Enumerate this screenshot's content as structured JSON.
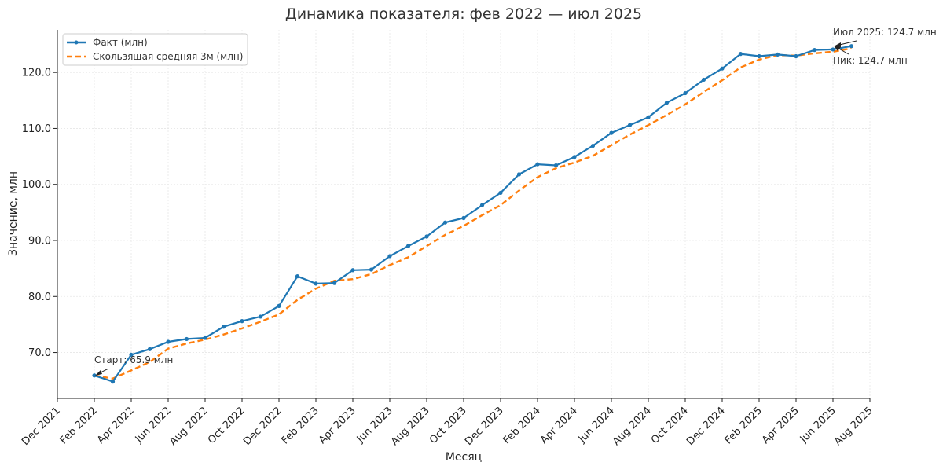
{
  "chart_data": {
    "type": "line",
    "title": "Динамика показателя: фев 2022 — июл 2025",
    "xlabel": "Месяц",
    "ylabel": "Значение, млн",
    "x_ticks": [
      "Dec 2021",
      "Feb 2022",
      "Apr 2022",
      "Jun 2022",
      "Aug 2022",
      "Oct 2022",
      "Dec 2022",
      "Feb 2023",
      "Apr 2023",
      "Jun 2023",
      "Aug 2023",
      "Oct 2023",
      "Dec 2023",
      "Feb 2024",
      "Apr 2024",
      "Jun 2024",
      "Aug 2024",
      "Oct 2024",
      "Dec 2024",
      "Feb 2025",
      "Apr 2025",
      "Jun 2025",
      "Aug 2025"
    ],
    "y_ticks": [
      "70.0",
      "80.0",
      "90.0",
      "100.0",
      "110.0",
      "120.0"
    ],
    "xlim": [
      "2021-12",
      "2025-08"
    ],
    "ylim": [
      61.8,
      127.6
    ],
    "grid": true,
    "legend_position": "top-left",
    "categories": [
      "2022-02",
      "2022-03",
      "2022-04",
      "2022-05",
      "2022-06",
      "2022-07",
      "2022-08",
      "2022-09",
      "2022-10",
      "2022-11",
      "2022-12",
      "2023-01",
      "2023-02",
      "2023-03",
      "2023-04",
      "2023-05",
      "2023-06",
      "2023-07",
      "2023-08",
      "2023-09",
      "2023-10",
      "2023-11",
      "2023-12",
      "2024-01",
      "2024-02",
      "2024-03",
      "2024-04",
      "2024-05",
      "2024-06",
      "2024-07",
      "2024-08",
      "2024-09",
      "2024-10",
      "2024-11",
      "2024-12",
      "2025-01",
      "2025-02",
      "2025-03",
      "2025-04",
      "2025-05",
      "2025-06",
      "2025-07"
    ],
    "series": [
      {
        "name": "Факт (млн)",
        "color": "#1f77b4",
        "style": "solid-with-markers",
        "values": [
          65.9,
          64.8,
          69.6,
          70.6,
          71.9,
          72.4,
          72.6,
          74.6,
          75.6,
          76.4,
          78.3,
          83.6,
          82.3,
          82.4,
          84.7,
          84.8,
          87.2,
          89.0,
          90.7,
          93.2,
          94.0,
          96.3,
          98.5,
          101.8,
          103.6,
          103.4,
          104.9,
          106.9,
          109.2,
          110.6,
          112.0,
          114.6,
          116.3,
          118.7,
          120.7,
          123.3,
          122.9,
          123.2,
          122.9,
          124.0,
          124.1,
          124.7
        ]
      },
      {
        "name": "Скользящая средняя 3м (млн)",
        "color": "#ff7f0e",
        "style": "dashed",
        "values": [
          65.9,
          65.35,
          66.8,
          68.3,
          70.7,
          71.6,
          72.3,
          73.2,
          74.3,
          75.5,
          76.8,
          79.4,
          81.4,
          82.8,
          83.1,
          84.0,
          85.6,
          87.0,
          89.0,
          91.0,
          92.6,
          94.5,
          96.3,
          98.9,
          101.3,
          102.9,
          103.9,
          105.1,
          107.0,
          108.9,
          110.6,
          112.4,
          114.3,
          116.5,
          118.6,
          120.9,
          122.3,
          123.1,
          123.0,
          123.4,
          123.7,
          124.3
        ]
      }
    ],
    "annotations": [
      {
        "text": "Старт: 65.9 млн",
        "x": "2022-02",
        "y": 65.9
      },
      {
        "text": "Июл 2025: 124.7 млн",
        "x": "2025-07",
        "y": 124.7
      },
      {
        "text": "Пик: 124.7 млн",
        "x": "2025-07",
        "y": 124.7
      }
    ]
  }
}
